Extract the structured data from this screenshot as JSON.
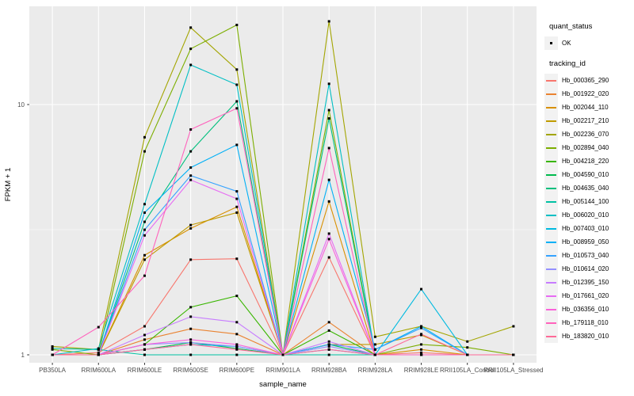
{
  "legend": {
    "quant_status": {
      "title": "quant_status",
      "ok_label": "OK",
      "marker": "black-point"
    },
    "tracking": {
      "title": "tracking_id"
    }
  },
  "chart_data": {
    "type": "line",
    "title": "",
    "xlabel": "sample_name",
    "ylabel": "FPKM + 1",
    "yscale": "log10",
    "ylim": [
      0.93,
      25
    ],
    "yticks": [
      1,
      10
    ],
    "ytick_labels": [
      "1",
      "10"
    ],
    "minor_yticks": [
      3.162
    ],
    "grid": "on",
    "legend_position": "right",
    "panel_bg": "#EBEBEB",
    "grid_color": "#FFFFFF",
    "marker_color": "#000000",
    "categories": [
      "PB350LA",
      "RRIM600LA",
      "RRIM600LE",
      "RRIM600SE",
      "RRIM600PE",
      "RRIM901LA",
      "RRIM928BA",
      "RRIM928LA",
      "RRIM928LE",
      "RRII105LA_Control",
      "RRII105LA_Stressed"
    ],
    "series": [
      {
        "name": "Hb_000365_290",
        "color": "#F8766D",
        "values": [
          1.0,
          1.02,
          1.3,
          2.4,
          2.42,
          1.0,
          2.45,
          1.0,
          1.02,
          1.0,
          1.0
        ]
      },
      {
        "name": "Hb_001922_020",
        "color": "#EA8331",
        "values": [
          1.0,
          1.0,
          1.15,
          1.27,
          1.21,
          1.0,
          1.35,
          1.0,
          1.0,
          1.0,
          1.0
        ]
      },
      {
        "name": "Hb_002044_110",
        "color": "#D89000",
        "values": [
          1.0,
          1.0,
          2.5,
          3.2,
          3.9,
          1.0,
          4.1,
          1.0,
          1.05,
          1.0,
          1.0
        ]
      },
      {
        "name": "Hb_002217_210",
        "color": "#C09B00",
        "values": [
          1.0,
          1.0,
          2.4,
          3.3,
          3.7,
          1.0,
          1.1,
          1.1,
          1.2,
          1.0,
          1.0
        ]
      },
      {
        "name": "Hb_002236_070",
        "color": "#A3A500",
        "values": [
          1.08,
          1.05,
          7.4,
          20.3,
          13.8,
          1.0,
          21.5,
          1.18,
          1.3,
          1.13,
          1.3
        ]
      },
      {
        "name": "Hb_002894_040",
        "color": "#7CAE00",
        "values": [
          1.05,
          1.0,
          6.5,
          16.7,
          20.8,
          1.0,
          9.5,
          1.0,
          1.1,
          1.07,
          1.0
        ]
      },
      {
        "name": "Hb_004218_220",
        "color": "#39B600",
        "values": [
          1.0,
          1.0,
          1.1,
          1.55,
          1.72,
          1.0,
          1.25,
          1.0,
          1.0,
          1.0,
          1.0
        ]
      },
      {
        "name": "Hb_004590_010",
        "color": "#00BB4E",
        "values": [
          1.0,
          1.0,
          1.05,
          1.12,
          1.06,
          1.0,
          1.1,
          1.0,
          1.0,
          1.0,
          1.0
        ]
      },
      {
        "name": "Hb_004635_040",
        "color": "#00BF7D",
        "values": [
          1.0,
          1.0,
          3.4,
          6.5,
          10.3,
          1.0,
          8.8,
          1.0,
          1.0,
          1.0,
          1.0
        ]
      },
      {
        "name": "Hb_005144_100",
        "color": "#00C1A3",
        "values": [
          1.06,
          1.05,
          1.0,
          1.0,
          1.0,
          1.0,
          1.0,
          1.0,
          1.0,
          1.0,
          1.0
        ]
      },
      {
        "name": "Hb_006020_010",
        "color": "#00BFC4",
        "values": [
          1.0,
          1.06,
          4.0,
          14.4,
          12.0,
          1.0,
          12.1,
          1.0,
          1.0,
          1.0,
          1.0
        ]
      },
      {
        "name": "Hb_007403_010",
        "color": "#00BAE0",
        "values": [
          1.0,
          1.0,
          1.05,
          1.1,
          1.08,
          1.0,
          1.05,
          1.0,
          1.83,
          1.0,
          1.0
        ]
      },
      {
        "name": "Hb_008959_050",
        "color": "#00B0F6",
        "values": [
          1.0,
          1.0,
          3.7,
          5.6,
          6.9,
          1.0,
          5.0,
          1.05,
          1.3,
          1.0,
          1.0
        ]
      },
      {
        "name": "Hb_010573_040",
        "color": "#35A2FF",
        "values": [
          1.0,
          1.0,
          3.16,
          5.2,
          4.5,
          1.0,
          1.1,
          1.05,
          1.28,
          1.0,
          1.0
        ]
      },
      {
        "name": "Hb_010614_020",
        "color": "#9590FF",
        "values": [
          1.0,
          1.0,
          1.1,
          1.12,
          1.08,
          1.0,
          1.08,
          1.0,
          1.0,
          1.0,
          1.0
        ]
      },
      {
        "name": "Hb_012395_150",
        "color": "#C77CFF",
        "values": [
          1.0,
          1.0,
          1.2,
          1.42,
          1.35,
          1.0,
          1.13,
          1.0,
          1.0,
          1.0,
          1.0
        ]
      },
      {
        "name": "Hb_017661_020",
        "color": "#E76BF3",
        "values": [
          1.0,
          1.0,
          3.0,
          5.0,
          4.2,
          1.0,
          3.05,
          1.0,
          1.0,
          1.0,
          1.0
        ]
      },
      {
        "name": "Hb_036356_010",
        "color": "#FA62DB",
        "values": [
          1.0,
          1.0,
          1.1,
          1.15,
          1.1,
          1.0,
          2.9,
          1.0,
          1.0,
          1.0,
          1.0
        ]
      },
      {
        "name": "Hb_179118_010",
        "color": "#FF62BC",
        "values": [
          1.0,
          1.29,
          2.07,
          7.95,
          9.66,
          1.0,
          6.7,
          1.0,
          1.0,
          1.0,
          1.0
        ]
      },
      {
        "name": "Hb_183820_010",
        "color": "#FF6A98",
        "values": [
          1.0,
          1.0,
          1.05,
          1.1,
          1.05,
          1.0,
          1.05,
          1.0,
          1.21,
          1.0,
          1.0
        ]
      }
    ]
  }
}
